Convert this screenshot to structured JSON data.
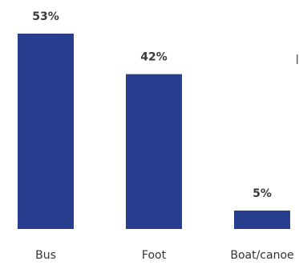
{
  "chart_data": {
    "type": "bar",
    "categories": [
      "Bus",
      "Foot",
      "Boat/canoe"
    ],
    "values": [
      53,
      42,
      5
    ],
    "data_labels": [
      "53%",
      "42%",
      "5%"
    ],
    "unit": "%",
    "ylim": [
      0,
      53
    ],
    "grid": false,
    "legend": "none",
    "bar_color": "#273e8e"
  }
}
